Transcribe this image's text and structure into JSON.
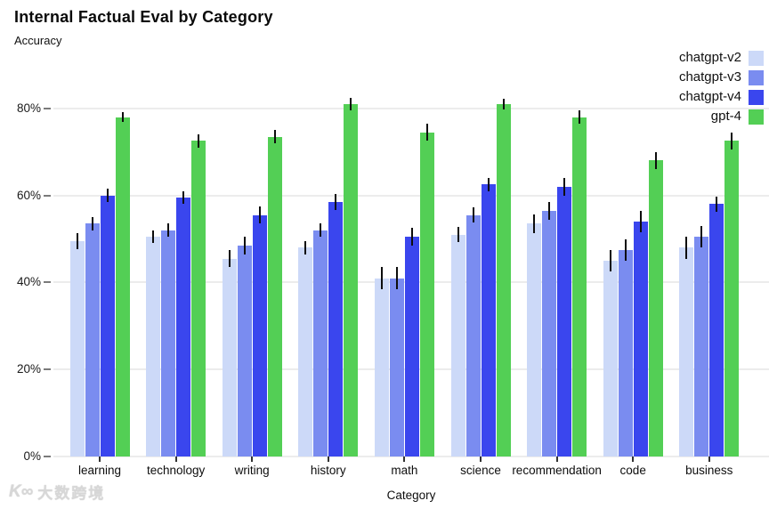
{
  "header": {
    "title": "Internal Factual Eval by Category",
    "subtitle": "Accuracy"
  },
  "watermark": {
    "icon": "K∞",
    "text": "大数跨境"
  },
  "chart_data": {
    "type": "bar",
    "title": "Internal Factual Eval by Category",
    "ylabel": "Accuracy",
    "xlabel": "Category",
    "grid": true,
    "legend_position": "top-right",
    "y_ticks_percent": [
      0,
      20,
      40,
      60,
      80
    ],
    "ylim": [
      0,
      84.5
    ],
    "categories": [
      "learning",
      "technology",
      "writing",
      "history",
      "math",
      "science",
      "recommendation",
      "code",
      "business"
    ],
    "series": [
      {
        "name": "chatgpt-v2",
        "color": "#ccd9f8",
        "values": [
          49.5,
          50.5,
          45.5,
          48,
          41,
          51,
          53.5,
          45,
          48
        ],
        "errors": [
          1.8,
          1.5,
          2,
          1.5,
          2.5,
          1.8,
          2.2,
          2.5,
          2.5
        ]
      },
      {
        "name": "chatgpt-v3",
        "color": "#7a8cf0",
        "values": [
          53.5,
          52,
          48.5,
          52,
          41,
          55.5,
          56.5,
          47.5,
          50.5
        ],
        "errors": [
          1.5,
          1.5,
          2,
          1.5,
          2.5,
          1.8,
          2,
          2.5,
          2.5
        ]
      },
      {
        "name": "chatgpt-v4",
        "color": "#3a46ee",
        "values": [
          60,
          59.5,
          55.5,
          58.5,
          50.5,
          62.5,
          62,
          54,
          58
        ],
        "errors": [
          1.5,
          1.5,
          2,
          1.8,
          2,
          1.5,
          2,
          2.5,
          1.8
        ]
      },
      {
        "name": "gpt-4",
        "color": "#53cf55",
        "values": [
          78,
          72.5,
          73.5,
          81,
          74.5,
          81,
          78,
          68,
          72.5
        ],
        "errors": [
          1.2,
          1.5,
          1.5,
          1.5,
          2,
          1.2,
          1.5,
          2,
          2
        ]
      }
    ]
  }
}
